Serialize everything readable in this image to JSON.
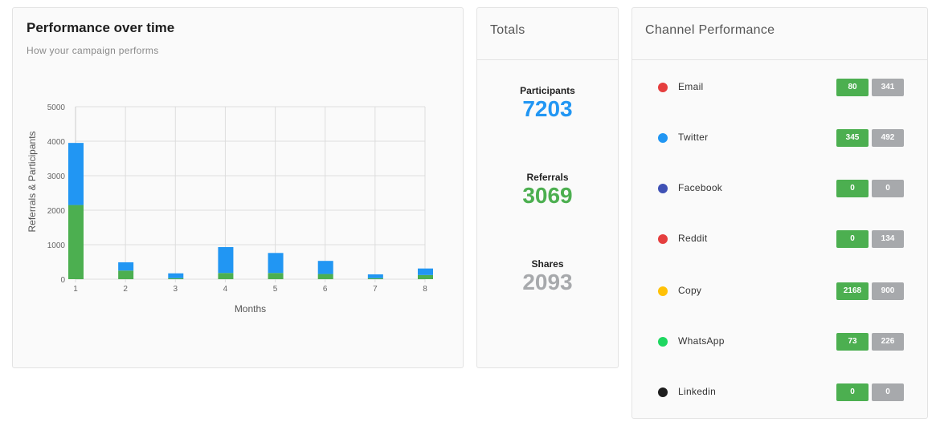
{
  "performance": {
    "title": "Performance over time",
    "subtitle": "How your campaign performs"
  },
  "chart_data": {
    "type": "bar",
    "stacked": true,
    "categories": [
      "1",
      "2",
      "3",
      "4",
      "5",
      "6",
      "7",
      "8"
    ],
    "series": [
      {
        "color": "#4caf50",
        "values": [
          2150,
          250,
          30,
          180,
          180,
          150,
          30,
          120
        ]
      },
      {
        "color": "#2196f3",
        "values": [
          1800,
          240,
          140,
          750,
          580,
          380,
          110,
          190
        ]
      }
    ],
    "xlabel": "Months",
    "ylabel": "Referrals & Participants",
    "ylim": [
      0,
      5000
    ],
    "yticks": [
      0,
      1000,
      2000,
      3000,
      4000,
      5000
    ],
    "grid": true
  },
  "totals": {
    "title": "Totals",
    "items": [
      {
        "label": "Participants",
        "value": "7203",
        "color": "#2196f3"
      },
      {
        "label": "Referrals",
        "value": "3069",
        "color": "#4caf50"
      },
      {
        "label": "Shares",
        "value": "2093",
        "color": "#a7a9ac"
      }
    ]
  },
  "channels": {
    "title": "Channel Performance",
    "items": [
      {
        "name": "Email",
        "color": "#e53e3e",
        "green": "80",
        "grey": "341"
      },
      {
        "name": "Twitter",
        "color": "#2196f3",
        "green": "345",
        "grey": "492"
      },
      {
        "name": "Facebook",
        "color": "#3f51b5",
        "green": "0",
        "grey": "0"
      },
      {
        "name": "Reddit",
        "color": "#e53e3e",
        "green": "0",
        "grey": "134"
      },
      {
        "name": "Copy",
        "color": "#ffc107",
        "green": "2168",
        "grey": "900"
      },
      {
        "name": "WhatsApp",
        "color": "#1ed760",
        "green": "73",
        "grey": "226"
      },
      {
        "name": "Linkedin",
        "color": "#1e1e1e",
        "green": "0",
        "grey": "0"
      }
    ]
  }
}
